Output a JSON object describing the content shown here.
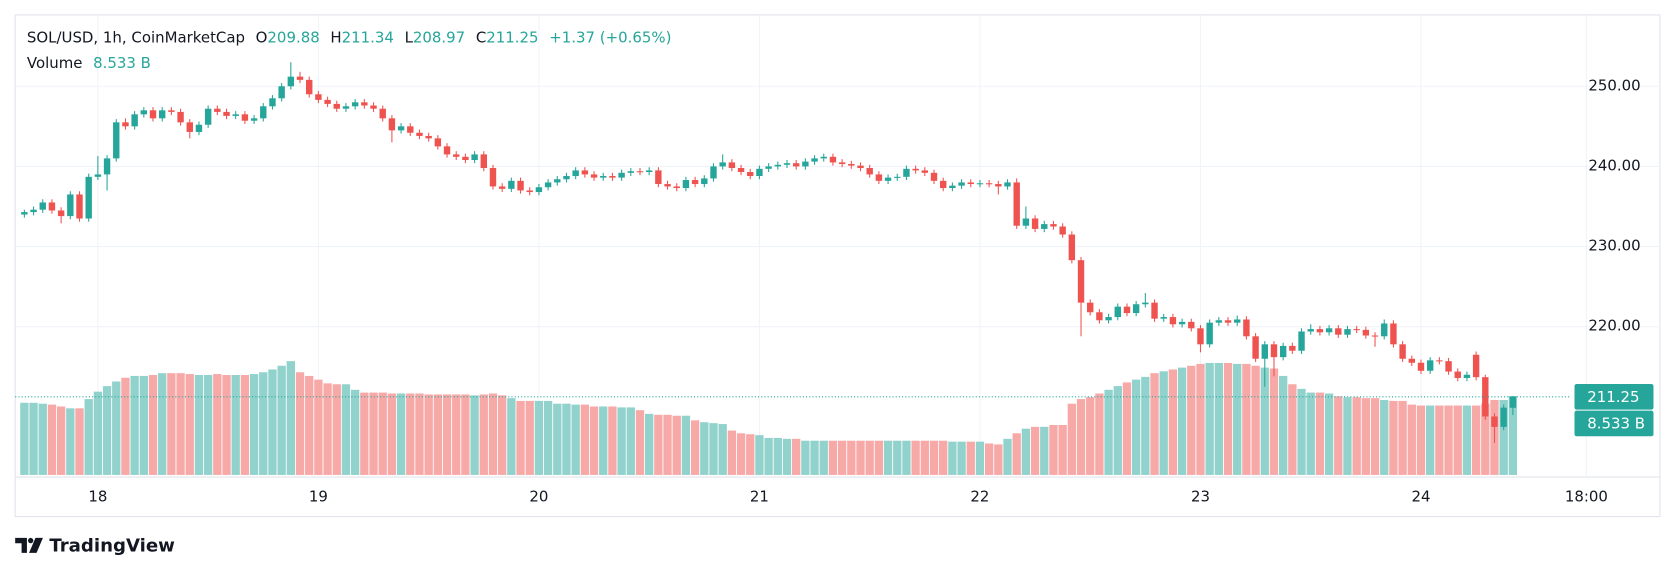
{
  "chart_data": {
    "type": "candlestick",
    "title": "SOL/USD, 1h, CoinMarketCap",
    "ohlc": [
      {
        "key": "O",
        "value": 209.88
      },
      {
        "key": "H",
        "value": 211.34
      },
      {
        "key": "L",
        "value": 208.97
      },
      {
        "key": "C",
        "value": 211.25
      }
    ],
    "change": "+1.37 (+0.65%)",
    "volume_title": "Volume",
    "last_price": {
      "value": 211.25,
      "label": "211.25"
    },
    "last_volume": {
      "value": 8.533,
      "label": "8.533 B"
    },
    "branding": "TradingView",
    "up_color": "#26a69a",
    "down_color": "#ef5350",
    "volume_up_color": "#92d2cc",
    "volume_down_color": "#f7a9a8",
    "grid": true,
    "ylim": [
      201.5,
      258.9
    ],
    "yticks": [
      {
        "value": 220,
        "label": "220.00"
      },
      {
        "value": 230,
        "label": "230.00"
      },
      {
        "value": 240,
        "label": "240.00"
      },
      {
        "value": 250,
        "label": "250.00"
      }
    ],
    "xlim": [
      -1,
      178
    ],
    "xticks": [
      {
        "value": 8,
        "label": "18"
      },
      {
        "value": 32,
        "label": "19"
      },
      {
        "value": 56,
        "label": "20"
      },
      {
        "value": 80,
        "label": "21"
      },
      {
        "value": 104,
        "label": "22"
      },
      {
        "value": 128,
        "label": "23"
      },
      {
        "value": 152,
        "label": "24"
      },
      {
        "value": 170,
        "label": "18:00"
      }
    ],
    "candles": [
      [
        234.0,
        234.6,
        233.6,
        234.3
      ],
      [
        234.3,
        235.0,
        233.9,
        234.6
      ],
      [
        234.6,
        235.9,
        234.2,
        235.5
      ],
      [
        235.5,
        235.9,
        234.1,
        234.5
      ],
      [
        234.5,
        234.9,
        232.9,
        233.8
      ],
      [
        233.8,
        236.9,
        233.4,
        236.5
      ],
      [
        236.5,
        236.9,
        233.1,
        233.5
      ],
      [
        233.5,
        239.1,
        233.1,
        238.7
      ],
      [
        238.7,
        241.3,
        238.3,
        239.0
      ],
      [
        239.0,
        241.4,
        237.0,
        241.0
      ],
      [
        241.0,
        245.9,
        240.6,
        245.5
      ],
      [
        245.5,
        246.0,
        244.6,
        245.0
      ],
      [
        245.0,
        246.9,
        244.6,
        246.5
      ],
      [
        246.5,
        247.4,
        246.1,
        247.0
      ],
      [
        247.0,
        247.4,
        245.6,
        246.0
      ],
      [
        246.0,
        247.4,
        245.6,
        247.0
      ],
      [
        247.0,
        247.4,
        246.4,
        246.8
      ],
      [
        246.8,
        247.2,
        245.1,
        245.5
      ],
      [
        245.5,
        245.9,
        243.5,
        244.3
      ],
      [
        244.3,
        245.6,
        243.9,
        245.2
      ],
      [
        245.2,
        247.6,
        244.8,
        247.2
      ],
      [
        247.2,
        247.6,
        246.4,
        246.8
      ],
      [
        246.8,
        247.2,
        245.9,
        246.3
      ],
      [
        246.3,
        246.9,
        245.9,
        246.5
      ],
      [
        246.5,
        246.9,
        245.3,
        245.7
      ],
      [
        245.7,
        246.4,
        245.3,
        246.0
      ],
      [
        246.0,
        247.9,
        245.6,
        247.5
      ],
      [
        247.5,
        248.9,
        247.1,
        248.5
      ],
      [
        248.5,
        250.4,
        248.1,
        250.0
      ],
      [
        250.0,
        253.0,
        249.6,
        251.2
      ],
      [
        251.2,
        251.8,
        250.4,
        250.8
      ],
      [
        250.8,
        251.2,
        248.6,
        249.0
      ],
      [
        249.0,
        249.4,
        247.9,
        248.3
      ],
      [
        248.3,
        248.7,
        247.4,
        247.8
      ],
      [
        247.8,
        248.2,
        246.8,
        247.2
      ],
      [
        247.2,
        247.9,
        246.8,
        247.5
      ],
      [
        247.5,
        248.4,
        247.1,
        248.0
      ],
      [
        248.0,
        248.4,
        247.2,
        247.6
      ],
      [
        247.6,
        248.0,
        246.8,
        247.2
      ],
      [
        247.2,
        247.6,
        245.6,
        246.0
      ],
      [
        246.0,
        246.4,
        243.0,
        244.5
      ],
      [
        244.5,
        245.4,
        244.1,
        245.0
      ],
      [
        245.0,
        245.4,
        243.8,
        244.2
      ],
      [
        244.2,
        244.6,
        243.4,
        243.8
      ],
      [
        243.8,
        244.2,
        243.1,
        243.5
      ],
      [
        243.5,
        243.9,
        242.1,
        242.5
      ],
      [
        242.5,
        242.9,
        241.1,
        241.5
      ],
      [
        241.5,
        241.9,
        240.8,
        241.2
      ],
      [
        241.2,
        241.6,
        240.4,
        240.8
      ],
      [
        240.8,
        241.9,
        240.4,
        241.5
      ],
      [
        241.5,
        241.9,
        239.4,
        239.8
      ],
      [
        239.8,
        240.2,
        237.1,
        237.5
      ],
      [
        237.5,
        237.9,
        236.8,
        237.2
      ],
      [
        237.2,
        238.6,
        236.8,
        238.2
      ],
      [
        238.2,
        238.6,
        236.6,
        237.0
      ],
      [
        237.0,
        237.4,
        236.4,
        236.8
      ],
      [
        236.8,
        237.8,
        236.4,
        237.4
      ],
      [
        237.4,
        238.4,
        237.0,
        238.0
      ],
      [
        238.0,
        238.8,
        237.6,
        238.4
      ],
      [
        238.4,
        239.2,
        238.0,
        238.8
      ],
      [
        238.8,
        239.9,
        238.4,
        239.5
      ],
      [
        239.5,
        239.9,
        238.6,
        239.0
      ],
      [
        239.0,
        239.4,
        238.2,
        238.6
      ],
      [
        238.6,
        239.2,
        238.2,
        238.8
      ],
      [
        238.8,
        239.2,
        238.2,
        238.6
      ],
      [
        238.6,
        239.6,
        238.2,
        239.2
      ],
      [
        239.2,
        239.8,
        238.8,
        239.4
      ],
      [
        239.4,
        239.8,
        238.9,
        239.3
      ],
      [
        239.3,
        239.9,
        238.9,
        239.5
      ],
      [
        239.5,
        239.9,
        237.4,
        237.8
      ],
      [
        237.8,
        238.2,
        237.1,
        237.5
      ],
      [
        237.5,
        237.9,
        236.9,
        237.3
      ],
      [
        237.3,
        238.7,
        236.9,
        238.3
      ],
      [
        238.3,
        238.7,
        237.4,
        237.8
      ],
      [
        237.8,
        238.9,
        237.4,
        238.5
      ],
      [
        238.5,
        240.4,
        238.1,
        240.0
      ],
      [
        240.0,
        241.5,
        239.6,
        240.5
      ],
      [
        240.5,
        240.9,
        239.4,
        239.8
      ],
      [
        239.8,
        240.2,
        238.9,
        239.3
      ],
      [
        239.3,
        239.7,
        238.4,
        238.8
      ],
      [
        238.8,
        240.1,
        238.4,
        239.7
      ],
      [
        239.7,
        240.4,
        239.3,
        240.0
      ],
      [
        240.0,
        240.6,
        239.6,
        240.2
      ],
      [
        240.2,
        240.8,
        239.8,
        240.4
      ],
      [
        240.4,
        240.8,
        239.6,
        240.0
      ],
      [
        240.0,
        241.0,
        239.6,
        240.6
      ],
      [
        240.6,
        241.4,
        240.2,
        241.0
      ],
      [
        241.0,
        241.6,
        240.6,
        241.2
      ],
      [
        241.2,
        241.6,
        240.1,
        240.5
      ],
      [
        240.5,
        240.9,
        239.9,
        240.3
      ],
      [
        240.3,
        240.7,
        239.7,
        240.1
      ],
      [
        240.1,
        240.5,
        239.4,
        239.8
      ],
      [
        239.8,
        240.2,
        238.6,
        239.0
      ],
      [
        239.0,
        239.4,
        237.8,
        238.2
      ],
      [
        238.2,
        239.0,
        237.8,
        238.6
      ],
      [
        238.6,
        239.1,
        238.2,
        238.7
      ],
      [
        238.7,
        240.1,
        238.3,
        239.7
      ],
      [
        239.7,
        240.1,
        239.1,
        239.5
      ],
      [
        239.5,
        239.9,
        238.8,
        239.2
      ],
      [
        239.2,
        239.6,
        237.8,
        238.2
      ],
      [
        238.2,
        238.6,
        236.9,
        237.3
      ],
      [
        237.3,
        238.0,
        236.9,
        237.6
      ],
      [
        237.6,
        238.4,
        237.2,
        238.0
      ],
      [
        238.0,
        238.4,
        237.4,
        237.8
      ],
      [
        237.8,
        238.3,
        237.4,
        237.9
      ],
      [
        237.9,
        238.3,
        237.4,
        237.8
      ],
      [
        237.8,
        238.2,
        236.5,
        237.5
      ],
      [
        237.5,
        238.4,
        237.1,
        238.0
      ],
      [
        238.0,
        238.5,
        232.2,
        232.6
      ],
      [
        232.6,
        235.0,
        232.2,
        233.5
      ],
      [
        233.5,
        233.9,
        231.8,
        232.2
      ],
      [
        232.2,
        233.2,
        231.8,
        232.8
      ],
      [
        232.8,
        233.2,
        232.1,
        232.5
      ],
      [
        232.5,
        232.9,
        231.1,
        231.5
      ],
      [
        231.5,
        231.9,
        227.9,
        228.3
      ],
      [
        228.3,
        228.7,
        218.8,
        223.0
      ],
      [
        223.0,
        223.4,
        221.4,
        221.8
      ],
      [
        221.8,
        222.2,
        220.4,
        220.8
      ],
      [
        220.8,
        221.6,
        220.4,
        221.2
      ],
      [
        221.2,
        222.9,
        220.8,
        222.5
      ],
      [
        222.5,
        222.9,
        221.3,
        221.7
      ],
      [
        221.7,
        223.2,
        221.3,
        222.8
      ],
      [
        222.8,
        224.2,
        222.4,
        223.0
      ],
      [
        223.0,
        223.4,
        220.6,
        221.0
      ],
      [
        221.0,
        221.6,
        220.6,
        221.2
      ],
      [
        221.2,
        221.6,
        219.9,
        220.3
      ],
      [
        220.3,
        221.0,
        219.9,
        220.6
      ],
      [
        220.6,
        221.0,
        219.4,
        219.8
      ],
      [
        219.8,
        220.2,
        216.8,
        217.8
      ],
      [
        217.8,
        220.9,
        217.4,
        220.5
      ],
      [
        220.5,
        221.2,
        220.1,
        220.8
      ],
      [
        220.8,
        221.2,
        220.1,
        220.5
      ],
      [
        220.5,
        221.4,
        220.1,
        220.9
      ],
      [
        220.9,
        221.3,
        218.4,
        218.8
      ],
      [
        218.8,
        219.2,
        215.6,
        216.0
      ],
      [
        216.0,
        218.2,
        212.5,
        217.8
      ],
      [
        217.8,
        218.2,
        213.8,
        216.2
      ],
      [
        216.2,
        218.0,
        215.8,
        217.6
      ],
      [
        217.6,
        218.0,
        216.6,
        217.0
      ],
      [
        217.0,
        219.8,
        216.6,
        219.4
      ],
      [
        219.4,
        220.3,
        219.0,
        219.7
      ],
      [
        219.7,
        220.1,
        218.9,
        219.3
      ],
      [
        219.3,
        220.2,
        218.9,
        219.8
      ],
      [
        219.8,
        220.2,
        218.6,
        219.0
      ],
      [
        219.0,
        220.1,
        218.6,
        219.7
      ],
      [
        219.7,
        220.1,
        219.2,
        219.6
      ],
      [
        219.6,
        220.0,
        218.5,
        218.9
      ],
      [
        218.9,
        219.3,
        217.5,
        218.8
      ],
      [
        218.8,
        220.9,
        218.4,
        220.4
      ],
      [
        220.4,
        220.8,
        217.4,
        217.8
      ],
      [
        217.8,
        218.2,
        215.6,
        216.0
      ],
      [
        216.0,
        216.4,
        215.1,
        215.5
      ],
      [
        215.5,
        215.9,
        214.1,
        214.5
      ],
      [
        214.5,
        216.2,
        214.1,
        215.8
      ],
      [
        215.8,
        216.2,
        215.3,
        215.7
      ],
      [
        215.7,
        216.1,
        214.0,
        214.4
      ],
      [
        214.4,
        214.8,
        213.2,
        213.6
      ],
      [
        213.6,
        214.4,
        213.2,
        214.0
      ],
      [
        216.5,
        216.9,
        213.3,
        213.7
      ],
      [
        213.7,
        214.0,
        208.4,
        208.8
      ],
      [
        208.8,
        209.2,
        205.5,
        207.5
      ],
      [
        207.5,
        210.3,
        207.1,
        209.9
      ],
      [
        209.88,
        211.34,
        208.97,
        211.25
      ]
    ],
    "volumes": [
      7.8,
      7.8,
      7.7,
      7.6,
      7.4,
      7.2,
      7.2,
      8.2,
      9.0,
      9.6,
      10.1,
      10.5,
      10.7,
      10.7,
      10.8,
      11.0,
      11.0,
      11.0,
      10.9,
      10.8,
      10.8,
      10.9,
      10.8,
      10.8,
      10.8,
      10.9,
      11.1,
      11.4,
      11.8,
      12.3,
      11.1,
      10.7,
      10.3,
      9.9,
      9.8,
      9.8,
      9.2,
      8.9,
      8.9,
      8.9,
      8.8,
      8.8,
      8.8,
      8.8,
      8.7,
      8.7,
      8.7,
      8.7,
      8.7,
      8.6,
      8.7,
      8.8,
      8.6,
      8.3,
      8.0,
      8.0,
      8.0,
      8.0,
      7.7,
      7.7,
      7.6,
      7.6,
      7.4,
      7.4,
      7.4,
      7.3,
      7.3,
      7.0,
      6.6,
      6.5,
      6.5,
      6.4,
      6.4,
      5.9,
      5.7,
      5.6,
      5.5,
      4.8,
      4.5,
      4.4,
      4.3,
      4.0,
      4.0,
      3.9,
      3.9,
      3.7,
      3.7,
      3.7,
      3.7,
      3.7,
      3.7,
      3.7,
      3.7,
      3.7,
      3.7,
      3.7,
      3.7,
      3.7,
      3.7,
      3.7,
      3.7,
      3.6,
      3.6,
      3.6,
      3.6,
      3.4,
      3.3,
      3.9,
      4.5,
      5.0,
      5.2,
      5.2,
      5.4,
      5.4,
      7.7,
      8.2,
      8.4,
      8.8,
      9.2,
      9.6,
      10.0,
      10.3,
      10.6,
      11.0,
      11.2,
      11.4,
      11.6,
      11.8,
      12.0,
      12.1,
      12.1,
      12.1,
      12.0,
      12.0,
      11.8,
      11.6,
      11.5,
      10.7,
      9.8,
      9.3,
      8.9,
      8.9,
      8.8,
      8.5,
      8.4,
      8.4,
      8.3,
      8.3,
      8.1,
      8.0,
      8.0,
      7.6,
      7.5,
      7.5,
      7.5,
      7.5,
      7.5,
      7.5,
      7.5,
      7.7,
      8.1,
      8.1,
      8.533
    ]
  }
}
